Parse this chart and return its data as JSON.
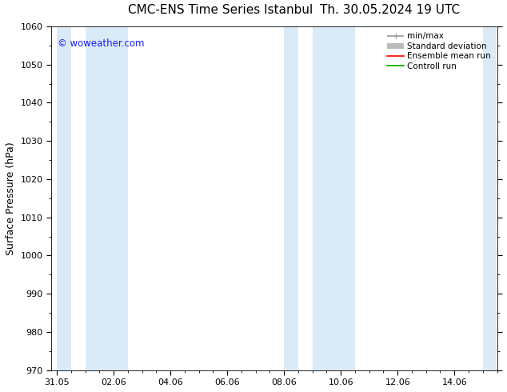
{
  "title_left": "CMC-ENS Time Series Istanbul",
  "title_right": "Th. 30.05.2024 19 UTC",
  "ylabel": "Surface Pressure (hPa)",
  "ylim": [
    970,
    1060
  ],
  "yticks": [
    970,
    980,
    990,
    1000,
    1010,
    1020,
    1030,
    1040,
    1050,
    1060
  ],
  "xtick_labels": [
    "31.05",
    "02.06",
    "04.06",
    "06.06",
    "08.06",
    "10.06",
    "12.06",
    "14.06"
  ],
  "xtick_positions": [
    0,
    2,
    4,
    6,
    8,
    10,
    12,
    14
  ],
  "xlim": [
    -0.2,
    15.5
  ],
  "watermark": "© woweather.com",
  "watermark_color": "#1a1aff",
  "bg_color": "#ffffff",
  "plot_bg_color": "#ffffff",
  "shaded_bands": [
    {
      "x_start": 0.0,
      "x_end": 0.5
    },
    {
      "x_start": 1.0,
      "x_end": 2.5
    },
    {
      "x_start": 8.0,
      "x_end": 8.5
    },
    {
      "x_start": 9.0,
      "x_end": 10.5
    },
    {
      "x_start": 15.0,
      "x_end": 15.5
    }
  ],
  "shaded_color": "#daeaf7",
  "legend_entries": [
    {
      "label": "min/max",
      "color": "#999999",
      "lw": 1.2
    },
    {
      "label": "Standard deviation",
      "color": "#bbbbbb",
      "lw": 5
    },
    {
      "label": "Ensemble mean run",
      "color": "#ff0000",
      "lw": 1.2
    },
    {
      "label": "Controll run",
      "color": "#00aa00",
      "lw": 1.2
    }
  ],
  "title_fontsize": 11,
  "tick_fontsize": 8,
  "label_fontsize": 9,
  "legend_fontsize": 7.5
}
